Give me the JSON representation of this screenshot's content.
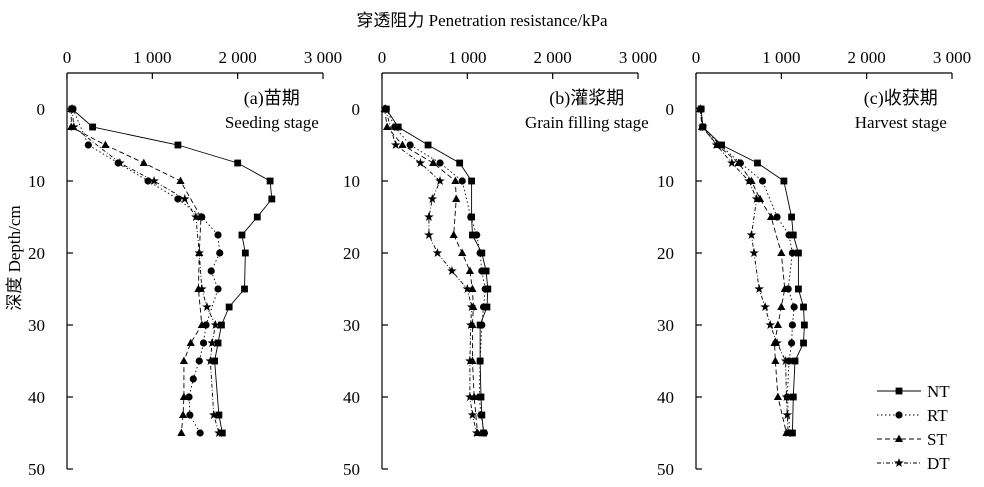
{
  "figure": {
    "x_axis_title": "穿透阻力 Penetration resistance/kPa",
    "y_axis_title": "深度 Depth/cm"
  },
  "legend": [
    {
      "name": "NT",
      "marker": "square",
      "dash": ""
    },
    {
      "name": "RT",
      "marker": "circle",
      "dash": "1.5,2.5"
    },
    {
      "name": "ST",
      "marker": "triangle",
      "dash": "5,3"
    },
    {
      "name": "DT",
      "marker": "star",
      "dash": "4,2,1,2"
    }
  ],
  "chart_data": [
    {
      "type": "line",
      "panel": "a",
      "title": "(a)苗期",
      "subtitle": "Seeding stage",
      "xlabel": "穿透阻力 Penetration resistance/kPa",
      "ylabel": "深度 Depth/cm",
      "xlim": [
        0,
        3000
      ],
      "ylim": [
        50,
        -5
      ],
      "y_inverted": true,
      "x_ticks": [
        "0",
        "1 000",
        "2 000",
        "3 000"
      ],
      "y_ticks": [
        "0",
        "10",
        "20",
        "30",
        "40",
        "50"
      ],
      "series": [
        {
          "name": "NT",
          "x": [
            60,
            300,
            1300,
            2000,
            2380,
            2400,
            2230,
            2050,
            2090,
            2080,
            1900,
            1810,
            1770,
            1730,
            1780,
            1820
          ],
          "y": [
            0,
            2.5,
            5,
            7.5,
            10,
            12.5,
            15,
            17.5,
            20,
            25,
            27.5,
            30,
            32.5,
            35,
            42.5,
            45
          ]
        },
        {
          "name": "RT",
          "x": [
            70,
            250,
            600,
            950,
            1300,
            1580,
            1770,
            1790,
            1690,
            1770,
            1630,
            1600,
            1550,
            1480,
            1430,
            1440,
            1560
          ],
          "y": [
            0,
            5,
            7.5,
            10,
            12.5,
            15,
            17.5,
            20,
            22.5,
            25,
            30,
            32.5,
            35,
            37.5,
            40,
            42.5,
            45
          ]
        },
        {
          "name": "ST",
          "x": [
            50,
            50,
            450,
            900,
            1330,
            1570,
            1550,
            1540,
            1580,
            1450,
            1370,
            1370,
            1360,
            1340
          ],
          "y": [
            0,
            2.5,
            5,
            7.5,
            10,
            15,
            20,
            25,
            30,
            32.5,
            35,
            40,
            42.5,
            45
          ]
        },
        {
          "name": "DT",
          "x": [
            60,
            80,
            620,
            1020,
            1380,
            1510,
            1550,
            1580,
            1640,
            1740,
            1700,
            1680,
            1720,
            1780
          ],
          "y": [
            0,
            2.5,
            7.5,
            10,
            12.5,
            15,
            20,
            25,
            27.5,
            30,
            32.5,
            35,
            42.5,
            45
          ]
        }
      ]
    },
    {
      "type": "line",
      "panel": "b",
      "title": "(b)灌浆期",
      "subtitle": "Grain filling stage",
      "xlabel": "穿透阻力 Penetration resistance/kPa",
      "ylabel": "深度 Depth/cm",
      "xlim": [
        0,
        3000
      ],
      "ylim": [
        50,
        -5
      ],
      "y_inverted": true,
      "x_ticks": [
        "0",
        "1 000",
        "2 000",
        "3 000"
      ],
      "y_ticks": [
        "0",
        "10",
        "20",
        "30",
        "40",
        "50"
      ],
      "series": [
        {
          "name": "NT",
          "x": [
            50,
            190,
            540,
            910,
            1050,
            1050,
            1060,
            1170,
            1220,
            1240,
            1230,
            1150,
            1150,
            1160,
            1170,
            1190
          ],
          "y": [
            0,
            2.5,
            5,
            7.5,
            10,
            15,
            17.5,
            20,
            22.5,
            25,
            27.5,
            30,
            35,
            40,
            42.5,
            45
          ]
        },
        {
          "name": "RT",
          "x": [
            50,
            150,
            330,
            680,
            940,
            1040,
            1110,
            1150,
            1170,
            1210,
            1190,
            1170,
            1150,
            1140,
            1160,
            1200
          ],
          "y": [
            0,
            2.5,
            5,
            7.5,
            10,
            15,
            17.5,
            20,
            22.5,
            25,
            27.5,
            30,
            35,
            40,
            42.5,
            45
          ]
        },
        {
          "name": "ST",
          "x": [
            30,
            60,
            240,
            600,
            860,
            870,
            840,
            940,
            1030,
            1060,
            1070,
            1060,
            1060,
            1080,
            1120
          ],
          "y": [
            0,
            2.5,
            5,
            7.5,
            10,
            12.5,
            17.5,
            20,
            22.5,
            25,
            27.5,
            30,
            35,
            40,
            45
          ]
        },
        {
          "name": "DT",
          "x": [
            40,
            160,
            450,
            680,
            590,
            550,
            550,
            650,
            820,
            1000,
            1050,
            1040,
            1030,
            1030,
            1060,
            1110
          ],
          "y": [
            0,
            5,
            7.5,
            10,
            12.5,
            15,
            17.5,
            20,
            22.5,
            25,
            27.5,
            30,
            35,
            40,
            42.5,
            45
          ]
        }
      ]
    },
    {
      "type": "line",
      "panel": "c",
      "title": "(c)收获期",
      "subtitle": "Harvest stage",
      "xlabel": "穿透阻力 Penetration resistance/kPa",
      "ylabel": "深度 Depth/cm",
      "xlim": [
        0,
        3000
      ],
      "ylim": [
        50,
        -5
      ],
      "y_inverted": true,
      "x_ticks": [
        "0",
        "1 000",
        "2 000",
        "3 000"
      ],
      "y_ticks": [
        "0",
        "10",
        "20",
        "30",
        "40",
        "50"
      ],
      "series": [
        {
          "name": "NT",
          "x": [
            60,
            80,
            300,
            720,
            1030,
            1120,
            1140,
            1200,
            1200,
            1260,
            1270,
            1260,
            1160,
            1140,
            1130
          ],
          "y": [
            0,
            2.5,
            5,
            7.5,
            10,
            15,
            17.5,
            20,
            25,
            27.5,
            30,
            32.5,
            35,
            40,
            45
          ]
        },
        {
          "name": "RT",
          "x": [
            60,
            80,
            280,
            520,
            780,
            950,
            1090,
            1130,
            1080,
            1150,
            1130,
            1120,
            1090,
            1070,
            1100
          ],
          "y": [
            0,
            2.5,
            5,
            7.5,
            10,
            15,
            17.5,
            20,
            25,
            27.5,
            30,
            32.5,
            35,
            40,
            45
          ]
        },
        {
          "name": "ST",
          "x": [
            50,
            70,
            250,
            500,
            650,
            750,
            880,
            1000,
            1040,
            1000,
            960,
            920,
            930,
            960,
            1060
          ],
          "y": [
            0,
            2.5,
            5,
            7.5,
            10,
            12.5,
            15,
            20,
            25,
            27.5,
            30,
            32.5,
            35,
            40,
            45
          ]
        },
        {
          "name": "DT",
          "x": [
            50,
            80,
            240,
            420,
            620,
            710,
            650,
            680,
            740,
            810,
            870,
            950,
            1050,
            1060,
            1070,
            1080
          ],
          "y": [
            0,
            2.5,
            5,
            7.5,
            10,
            12.5,
            17.5,
            20,
            25,
            27.5,
            30,
            32.5,
            35,
            40,
            42.5,
            45
          ]
        }
      ]
    }
  ]
}
